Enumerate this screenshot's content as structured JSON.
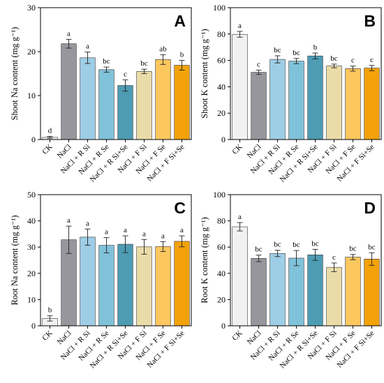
{
  "colors": {
    "bars": [
      "#f1f1f1",
      "#97969d",
      "#9ecde6",
      "#80c2d9",
      "#4e9cb3",
      "#eadca8",
      "#fcc75f",
      "#f3a20a"
    ],
    "frame": "#000000"
  },
  "chart_data": [
    {
      "type": "bar",
      "panel": "A",
      "ylabel": "Shoot Na content (mg g⁻¹)",
      "ylim": [
        0,
        30
      ],
      "yticks": [
        "0",
        "10",
        "20",
        "30"
      ],
      "categories": [
        "CK",
        "NaCl",
        "NaCl + R Si",
        "NaCl + R Se",
        "NaCl + R Si+Se",
        "NaCl + F Si",
        "NaCl + F Se",
        "NaCl + F Si+Se"
      ],
      "values": [
        0.5,
        21.8,
        18.6,
        15.9,
        12.3,
        15.5,
        18.2,
        16.9
      ],
      "errors": [
        0.2,
        1.0,
        1.3,
        0.6,
        1.3,
        0.5,
        1.1,
        1.1
      ],
      "significance": [
        "d",
        "a",
        "a",
        "bc",
        "c",
        "bc",
        "ab",
        "b"
      ]
    },
    {
      "type": "bar",
      "panel": "B",
      "ylabel": "Shoot K content (mg g⁻¹)",
      "ylim": [
        0,
        100
      ],
      "yticks": [
        "0",
        "20",
        "40",
        "60",
        "80",
        "100"
      ],
      "categories": [
        "CK",
        "NaCl",
        "NaCl + R Si",
        "NaCl + R Se",
        "NaCl + R Si+Se",
        "NaCl + F Si",
        "NaCl + F Se",
        "NaCl + F Si+Se"
      ],
      "values": [
        79.8,
        51.0,
        60.8,
        59.5,
        63.4,
        55.8,
        53.8,
        54.2
      ],
      "errors": [
        2.2,
        1.6,
        2.7,
        2.0,
        2.2,
        1.4,
        1.9,
        2.0
      ],
      "significance": [
        "a",
        "c",
        "bc",
        "bc",
        "b",
        "bc",
        "c",
        "c"
      ]
    },
    {
      "type": "bar",
      "panel": "C",
      "ylabel": "Root Na content (mg g⁻¹)",
      "ylim": [
        0,
        50
      ],
      "yticks": [
        "0",
        "10",
        "20",
        "30",
        "40",
        "50"
      ],
      "categories": [
        "CK",
        "NaCl",
        "NaCl + R Si",
        "NaCl + R Se",
        "NaCl + R Si+Se",
        "NaCl + F Si",
        "NaCl + F Se",
        "NaCl + F Si+Se"
      ],
      "values": [
        2.8,
        32.8,
        33.8,
        30.7,
        31.1,
        30.1,
        30.2,
        32.2
      ],
      "errors": [
        1.0,
        5.2,
        3.1,
        2.9,
        3.2,
        2.8,
        1.9,
        2.1
      ],
      "significance": [
        "b",
        "a",
        "a",
        "a",
        "a",
        "a",
        "a",
        "a"
      ]
    },
    {
      "type": "bar",
      "panel": "D",
      "ylabel": "Root K content (mg g⁻¹)",
      "ylim": [
        0,
        100
      ],
      "yticks": [
        "0",
        "20",
        "40",
        "60",
        "80",
        "100"
      ],
      "categories": [
        "CK",
        "NaCl",
        "NaCl + R Si",
        "NaCl + R Se",
        "NaCl + R Si+Se",
        "NaCl + F Si",
        "NaCl + F Se",
        "NaCl + F Si+Se"
      ],
      "values": [
        75.5,
        51.4,
        55.2,
        51.6,
        54.1,
        44.6,
        52.4,
        50.9
      ],
      "errors": [
        3.2,
        2.5,
        2.4,
        5.8,
        4.2,
        3.3,
        2.0,
        4.8
      ],
      "significance": [
        "a",
        "bc",
        "bc",
        "bc",
        "bc",
        "c",
        "bc",
        "bc"
      ]
    }
  ]
}
